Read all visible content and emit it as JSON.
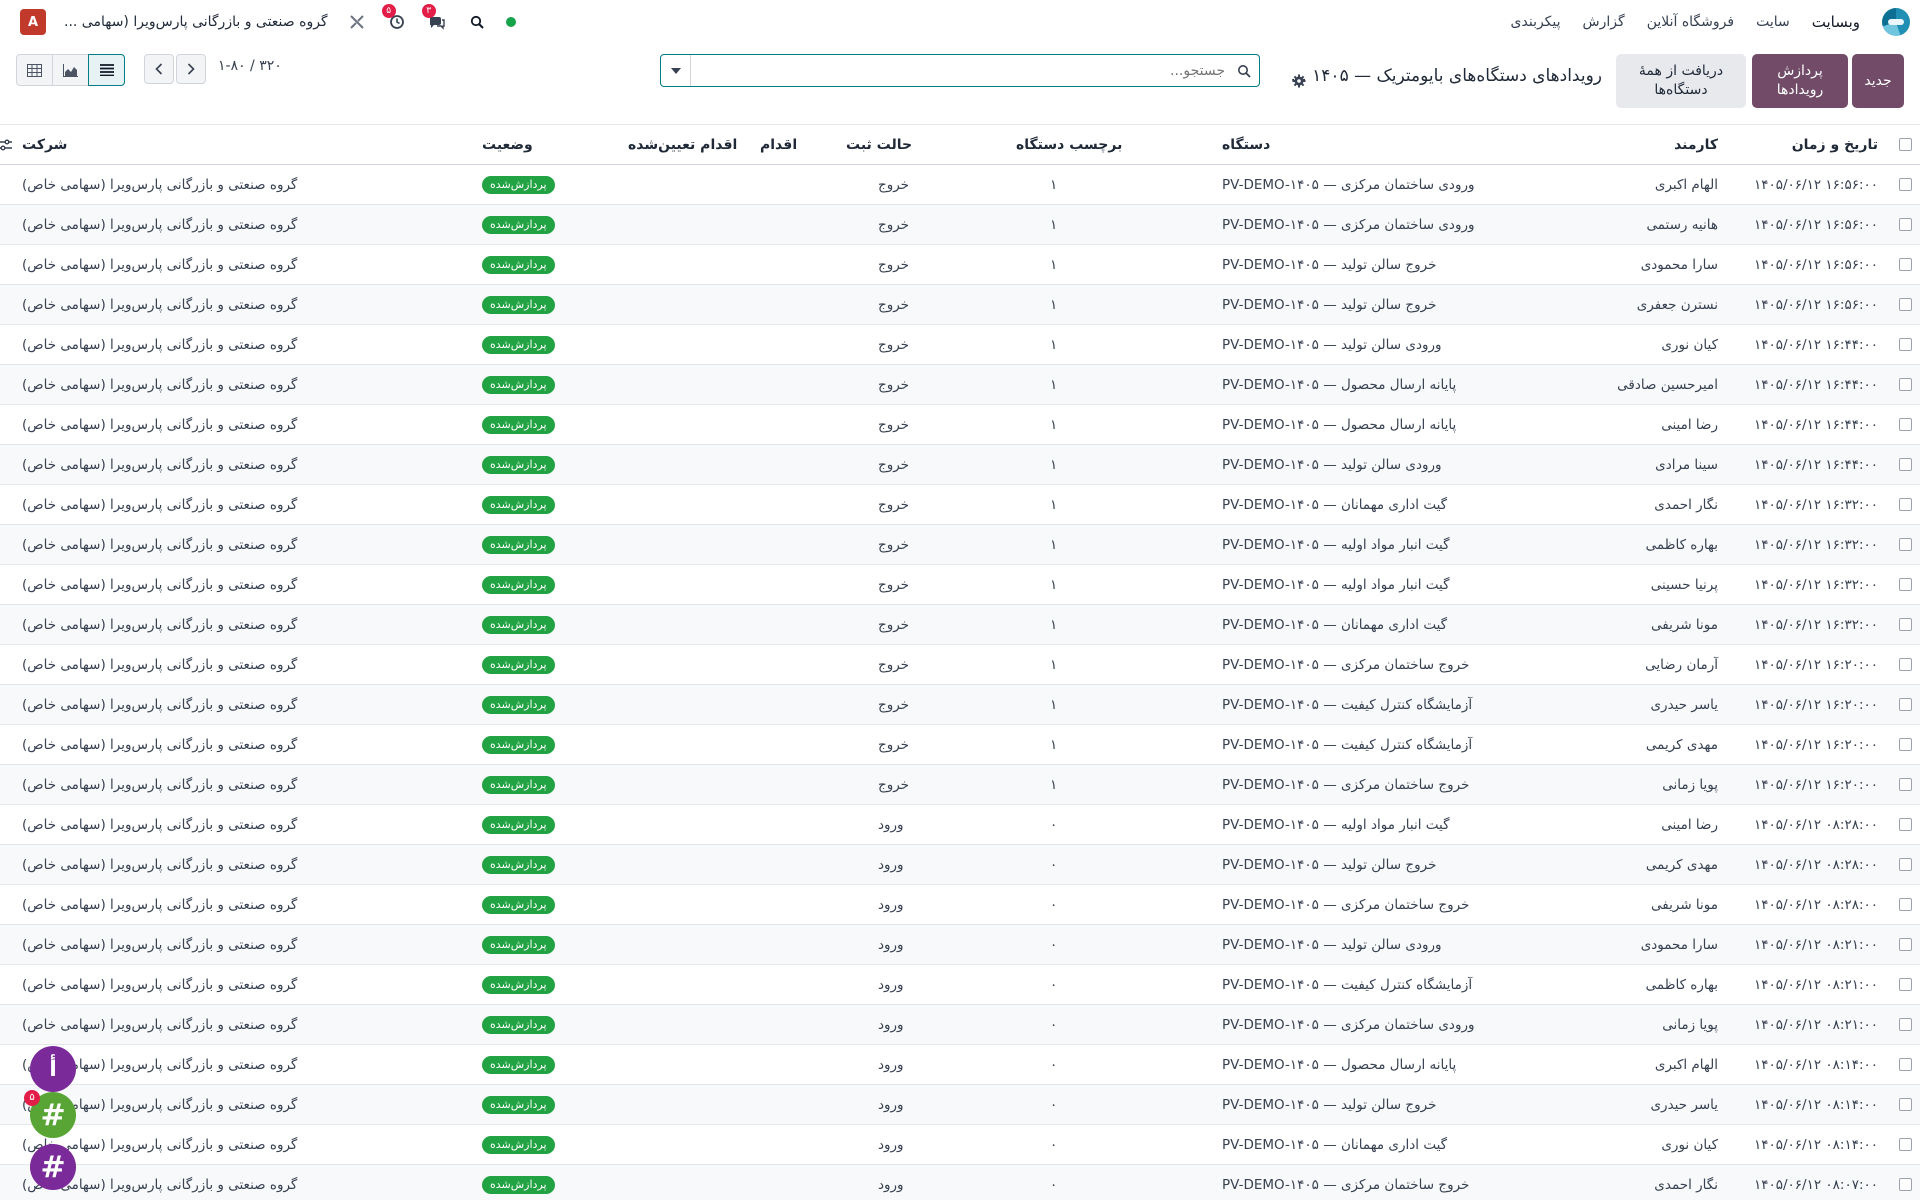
{
  "navbar": {
    "app_name": "وبسایت",
    "menu": [
      "سایت",
      "فروشگاه آنلاین",
      "گزارش",
      "پیکربندی"
    ],
    "company": "گروه صنعتی و بازرگانی پارس‌ویرا (سهامی ...",
    "avatar_letter": "A",
    "messages_count": "۳",
    "activities_count": "۵"
  },
  "control": {
    "new_label": "جدید",
    "process_label": "پردازش رویدادها",
    "fetch_label": "دریافت از همهٔ دستگاه‌ها",
    "title": "رویدادهای دستگاه‌های بایومتریک — ۱۴۰۵ ...",
    "search_placeholder": "جستجو...",
    "pager": "۱-۸۰ / ۳۲۰"
  },
  "table": {
    "headers": {
      "datetime": "تاریخ و زمان",
      "employee": "کارمند",
      "device": "دستگاه",
      "device_label": "برچسب دستگاه",
      "punch_state": "حالت ثبت",
      "action": "اقدام",
      "assigned_action": "اقدام تعیین‌شده",
      "status": "وضعیت",
      "company": "شرکت"
    },
    "rows": [
      {
        "dt": "۱۴۰۵/۰۶/۱۲ ۱۶:۵۶:۰۰",
        "emp": "الهام اکبری",
        "dev": "ورودی ساختمان مرکزی — PV-DEMO-۱۴۰۵",
        "lbl": "۱",
        "state": "خروج",
        "status": "پردازش‌شده",
        "comp": "گروه صنعتی و بازرگانی پارس‌ویرا (سهامی خاص)"
      },
      {
        "dt": "۱۴۰۵/۰۶/۱۲ ۱۶:۵۶:۰۰",
        "emp": "هانیه رستمی",
        "dev": "ورودی ساختمان مرکزی — PV-DEMO-۱۴۰۵",
        "lbl": "۱",
        "state": "خروج",
        "status": "پردازش‌شده",
        "comp": "گروه صنعتی و بازرگانی پارس‌ویرا (سهامی خاص)"
      },
      {
        "dt": "۱۴۰۵/۰۶/۱۲ ۱۶:۵۶:۰۰",
        "emp": "سارا محمودی",
        "dev": "خروج سالن تولید — PV-DEMO-۱۴۰۵",
        "lbl": "۱",
        "state": "خروج",
        "status": "پردازش‌شده",
        "comp": "گروه صنعتی و بازرگانی پارس‌ویرا (سهامی خاص)"
      },
      {
        "dt": "۱۴۰۵/۰۶/۱۲ ۱۶:۵۶:۰۰",
        "emp": "نسترن جعفری",
        "dev": "خروج سالن تولید — PV-DEMO-۱۴۰۵",
        "lbl": "۱",
        "state": "خروج",
        "status": "پردازش‌شده",
        "comp": "گروه صنعتی و بازرگانی پارس‌ویرا (سهامی خاص)"
      },
      {
        "dt": "۱۴۰۵/۰۶/۱۲ ۱۶:۴۴:۰۰",
        "emp": "کیان نوری",
        "dev": "ورودی سالن تولید — PV-DEMO-۱۴۰۵",
        "lbl": "۱",
        "state": "خروج",
        "status": "پردازش‌شده",
        "comp": "گروه صنعتی و بازرگانی پارس‌ویرا (سهامی خاص)"
      },
      {
        "dt": "۱۴۰۵/۰۶/۱۲ ۱۶:۴۴:۰۰",
        "emp": "امیرحسین صادقی",
        "dev": "پایانه ارسال محصول — PV-DEMO-۱۴۰۵",
        "lbl": "۱",
        "state": "خروج",
        "status": "پردازش‌شده",
        "comp": "گروه صنعتی و بازرگانی پارس‌ویرا (سهامی خاص)"
      },
      {
        "dt": "۱۴۰۵/۰۶/۱۲ ۱۶:۴۴:۰۰",
        "emp": "رضا امینی",
        "dev": "پایانه ارسال محصول — PV-DEMO-۱۴۰۵",
        "lbl": "۱",
        "state": "خروج",
        "status": "پردازش‌شده",
        "comp": "گروه صنعتی و بازرگانی پارس‌ویرا (سهامی خاص)"
      },
      {
        "dt": "۱۴۰۵/۰۶/۱۲ ۱۶:۴۴:۰۰",
        "emp": "سینا مرادی",
        "dev": "ورودی سالن تولید — PV-DEMO-۱۴۰۵",
        "lbl": "۱",
        "state": "خروج",
        "status": "پردازش‌شده",
        "comp": "گروه صنعتی و بازرگانی پارس‌ویرا (سهامی خاص)"
      },
      {
        "dt": "۱۴۰۵/۰۶/۱۲ ۱۶:۳۲:۰۰",
        "emp": "نگار احمدی",
        "dev": "گیت اداری مهمانان — PV-DEMO-۱۴۰۵",
        "lbl": "۱",
        "state": "خروج",
        "status": "پردازش‌شده",
        "comp": "گروه صنعتی و بازرگانی پارس‌ویرا (سهامی خاص)"
      },
      {
        "dt": "۱۴۰۵/۰۶/۱۲ ۱۶:۳۲:۰۰",
        "emp": "بهاره کاظمی",
        "dev": "گیت انبار مواد اولیه — PV-DEMO-۱۴۰۵",
        "lbl": "۱",
        "state": "خروج",
        "status": "پردازش‌شده",
        "comp": "گروه صنعتی و بازرگانی پارس‌ویرا (سهامی خاص)"
      },
      {
        "dt": "۱۴۰۵/۰۶/۱۲ ۱۶:۳۲:۰۰",
        "emp": "پرنیا حسینی",
        "dev": "گیت انبار مواد اولیه — PV-DEMO-۱۴۰۵",
        "lbl": "۱",
        "state": "خروج",
        "status": "پردازش‌شده",
        "comp": "گروه صنعتی و بازرگانی پارس‌ویرا (سهامی خاص)"
      },
      {
        "dt": "۱۴۰۵/۰۶/۱۲ ۱۶:۳۲:۰۰",
        "emp": "مونا شریفی",
        "dev": "گیت اداری مهمانان — PV-DEMO-۱۴۰۵",
        "lbl": "۱",
        "state": "خروج",
        "status": "پردازش‌شده",
        "comp": "گروه صنعتی و بازرگانی پارس‌ویرا (سهامی خاص)"
      },
      {
        "dt": "۱۴۰۵/۰۶/۱۲ ۱۶:۲۰:۰۰",
        "emp": "آرمان رضایی",
        "dev": "خروج ساختمان مرکزی — PV-DEMO-۱۴۰۵",
        "lbl": "۱",
        "state": "خروج",
        "status": "پردازش‌شده",
        "comp": "گروه صنعتی و بازرگانی پارس‌ویرا (سهامی خاص)"
      },
      {
        "dt": "۱۴۰۵/۰۶/۱۲ ۱۶:۲۰:۰۰",
        "emp": "یاسر حیدری",
        "dev": "آزمایشگاه کنترل کیفیت — PV-DEMO-۱۴۰۵",
        "lbl": "۱",
        "state": "خروج",
        "status": "پردازش‌شده",
        "comp": "گروه صنعتی و بازرگانی پارس‌ویرا (سهامی خاص)"
      },
      {
        "dt": "۱۴۰۵/۰۶/۱۲ ۱۶:۲۰:۰۰",
        "emp": "مهدی کریمی",
        "dev": "آزمایشگاه کنترل کیفیت — PV-DEMO-۱۴۰۵",
        "lbl": "۱",
        "state": "خروج",
        "status": "پردازش‌شده",
        "comp": "گروه صنعتی و بازرگانی پارس‌ویرا (سهامی خاص)"
      },
      {
        "dt": "۱۴۰۵/۰۶/۱۲ ۱۶:۲۰:۰۰",
        "emp": "پویا زمانی",
        "dev": "خروج ساختمان مرکزی — PV-DEMO-۱۴۰۵",
        "lbl": "۱",
        "state": "خروج",
        "status": "پردازش‌شده",
        "comp": "گروه صنعتی و بازرگانی پارس‌ویرا (سهامی خاص)"
      },
      {
        "dt": "۱۴۰۵/۰۶/۱۲ ۰۸:۲۸:۰۰",
        "emp": "رضا امینی",
        "dev": "گیت انبار مواد اولیه — PV-DEMO-۱۴۰۵",
        "lbl": "۰",
        "state": "ورود",
        "status": "پردازش‌شده",
        "comp": "گروه صنعتی و بازرگانی پارس‌ویرا (سهامی خاص)"
      },
      {
        "dt": "۱۴۰۵/۰۶/۱۲ ۰۸:۲۸:۰۰",
        "emp": "مهدی کریمی",
        "dev": "خروج سالن تولید — PV-DEMO-۱۴۰۵",
        "lbl": "۰",
        "state": "ورود",
        "status": "پردازش‌شده",
        "comp": "گروه صنعتی و بازرگانی پارس‌ویرا (سهامی خاص)"
      },
      {
        "dt": "۱۴۰۵/۰۶/۱۲ ۰۸:۲۸:۰۰",
        "emp": "مونا شریفی",
        "dev": "خروج ساختمان مرکزی — PV-DEMO-۱۴۰۵",
        "lbl": "۰",
        "state": "ورود",
        "status": "پردازش‌شده",
        "comp": "گروه صنعتی و بازرگانی پارس‌ویرا (سهامی خاص)"
      },
      {
        "dt": "۱۴۰۵/۰۶/۱۲ ۰۸:۲۱:۰۰",
        "emp": "سارا محمودی",
        "dev": "ورودی سالن تولید — PV-DEMO-۱۴۰۵",
        "lbl": "۰",
        "state": "ورود",
        "status": "پردازش‌شده",
        "comp": "گروه صنعتی و بازرگانی پارس‌ویرا (سهامی خاص)"
      },
      {
        "dt": "۱۴۰۵/۰۶/۱۲ ۰۸:۲۱:۰۰",
        "emp": "بهاره کاظمی",
        "dev": "آزمایشگاه کنترل کیفیت — PV-DEMO-۱۴۰۵",
        "lbl": "۰",
        "state": "ورود",
        "status": "پردازش‌شده",
        "comp": "گروه صنعتی و بازرگانی پارس‌ویرا (سهامی خاص)"
      },
      {
        "dt": "۱۴۰۵/۰۶/۱۲ ۰۸:۲۱:۰۰",
        "emp": "پویا زمانی",
        "dev": "ورودی ساختمان مرکزی — PV-DEMO-۱۴۰۵",
        "lbl": "۰",
        "state": "ورود",
        "status": "پردازش‌شده",
        "comp": "گروه صنعتی و بازرگانی پارس‌ویرا (سهامی خاص)"
      },
      {
        "dt": "۱۴۰۵/۰۶/۱۲ ۰۸:۱۴:۰۰",
        "emp": "الهام اکبری",
        "dev": "پایانه ارسال محصول — PV-DEMO-۱۴۰۵",
        "lbl": "۰",
        "state": "ورود",
        "status": "پردازش‌شده",
        "comp": "گروه صنعتی و بازرگانی پارس‌ویرا (سهامی خاص)"
      },
      {
        "dt": "۱۴۰۵/۰۶/۱۲ ۰۸:۱۴:۰۰",
        "emp": "یاسر حیدری",
        "dev": "خروج سالن تولید — PV-DEMO-۱۴۰۵",
        "lbl": "۰",
        "state": "ورود",
        "status": "پردازش‌شده",
        "comp": "گروه صنعتی و بازرگانی پارس‌ویرا (سهامی خاص)"
      },
      {
        "dt": "۱۴۰۵/۰۶/۱۲ ۰۸:۱۴:۰۰",
        "emp": "کیان نوری",
        "dev": "گیت اداری مهمانان — PV-DEMO-۱۴۰۵",
        "lbl": "۰",
        "state": "ورود",
        "status": "پردازش‌شده",
        "comp": "گروه صنعتی و بازرگانی پارس‌ویرا (سهامی خاص)"
      },
      {
        "dt": "۱۴۰۵/۰۶/۱۲ ۰۸:۰۷:۰۰",
        "emp": "نگار احمدی",
        "dev": "خروج ساختمان مرکزی — PV-DEMO-۱۴۰۵",
        "lbl": "۰",
        "state": "ورود",
        "status": "پردازش‌شده",
        "comp": "گروه صنعتی و بازرگانی پارس‌ویرا (سهامی خاص)"
      }
    ]
  },
  "chat": {
    "bubble1_letter": "أ",
    "bubble2_symbol": "#",
    "bubble3_symbol": "#",
    "bubble2_count": "۵"
  },
  "colors": {
    "primary": "#714b67",
    "teal": "#017e84",
    "success": "#21a243",
    "badge_red": "#e11d48"
  }
}
